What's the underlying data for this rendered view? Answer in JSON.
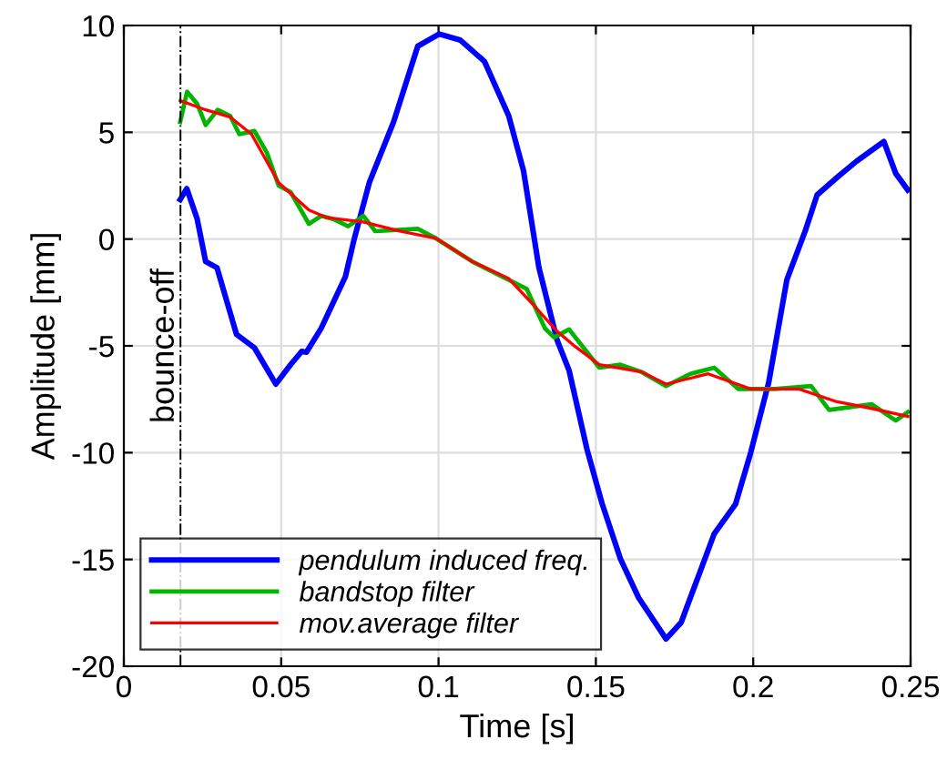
{
  "chart_data": {
    "type": "line",
    "xlabel": "Time [s]",
    "ylabel": "Amplitude [mm]",
    "xlim": [
      0,
      0.25
    ],
    "xticks": [
      0,
      0.05,
      0.1,
      0.15,
      0.2,
      0.25
    ],
    "ylim": [
      -20,
      10
    ],
    "yticks": [
      -20,
      -15,
      -10,
      -5,
      0,
      5,
      10
    ],
    "grid": true,
    "legend": "bottom left",
    "ref_lines": [
      {
        "axis": "x",
        "value": 0.018,
        "label": "bounce-off",
        "color": "#000000",
        "line_style": "dashdot"
      }
    ],
    "series": [
      {
        "name": "pendulum induced freq.",
        "color": "#0000ff",
        "x": [
          0.0179,
          0.02,
          0.0233,
          0.026,
          0.0296,
          0.0358,
          0.0415,
          0.0483,
          0.053,
          0.0565,
          0.058,
          0.0627,
          0.0704,
          0.0732,
          0.078,
          0.0857,
          0.0934,
          0.1002,
          0.1069,
          0.1146,
          0.1223,
          0.127,
          0.1319,
          0.1377,
          0.1415,
          0.1472,
          0.152,
          0.1578,
          0.1636,
          0.1723,
          0.1771,
          0.18,
          0.1876,
          0.1944,
          0.1992,
          0.2049,
          0.2107,
          0.2165,
          0.2203,
          0.227,
          0.2328,
          0.2415,
          0.2453,
          0.2491
        ],
        "values": [
          1.85,
          2.36,
          0.94,
          -1.05,
          -1.34,
          -4.46,
          -5.09,
          -6.79,
          -5.88,
          -5.26,
          -5.3,
          -4.18,
          -1.76,
          0,
          2.64,
          5.48,
          9.03,
          9.6,
          9.32,
          8.32,
          5.77,
          3.2,
          -1.34,
          -4.74,
          -6.16,
          -9.86,
          -12.4,
          -14.97,
          -16.8,
          -18.72,
          -17.95,
          -16.8,
          -13.8,
          -12.4,
          -10.0,
          -6.73,
          -1.9,
          0.37,
          2.07,
          2.93,
          3.64,
          4.57,
          3.07,
          2.3
        ]
      },
      {
        "name": "bandstop filter",
        "color": "#00b400",
        "x": [
          0.0179,
          0.0201,
          0.0233,
          0.026,
          0.0298,
          0.0338,
          0.0367,
          0.0415,
          0.0454,
          0.0492,
          0.053,
          0.0588,
          0.0627,
          0.0665,
          0.0713,
          0.0761,
          0.0799,
          0.0934,
          0.0992,
          0.1107,
          0.128,
          0.1338,
          0.1367,
          0.1415,
          0.1511,
          0.1578,
          0.1645,
          0.1723,
          0.18,
          0.1876,
          0.1953,
          0.2069,
          0.2184,
          0.2241,
          0.2376,
          0.2453,
          0.2491
        ],
        "values": [
          5.48,
          6.9,
          6.33,
          5.34,
          6.05,
          5.77,
          4.91,
          5.06,
          4.06,
          2.5,
          2.2,
          0.71,
          1.08,
          0.94,
          0.6,
          1.08,
          0.37,
          0.48,
          0.03,
          -1.05,
          -2.33,
          -4.18,
          -4.6,
          -4.23,
          -6.02,
          -5.88,
          -6.22,
          -6.88,
          -6.31,
          -6.02,
          -7.02,
          -7.02,
          -6.88,
          -8.0,
          -7.73,
          -8.5,
          -8.1
        ]
      },
      {
        "name": "mov.average filter",
        "color": "#ff0000",
        "x": [
          0.0179,
          0.026,
          0.0338,
          0.0406,
          0.0492,
          0.0588,
          0.0646,
          0.0761,
          0.0877,
          0.0992,
          0.1107,
          0.1223,
          0.1299,
          0.1377,
          0.1434,
          0.1511,
          0.1645,
          0.1723,
          0.1857,
          0.1992,
          0.2145,
          0.226,
          0.2376,
          0.2491
        ],
        "values": [
          6.48,
          6.05,
          5.71,
          4.91,
          2.64,
          1.36,
          1.0,
          0.8,
          0.37,
          0.03,
          -1.05,
          -1.85,
          -3.04,
          -4.32,
          -5.03,
          -5.88,
          -6.22,
          -6.79,
          -6.31,
          -7.02,
          -7.02,
          -7.59,
          -7.93,
          -8.3
        ]
      }
    ]
  }
}
